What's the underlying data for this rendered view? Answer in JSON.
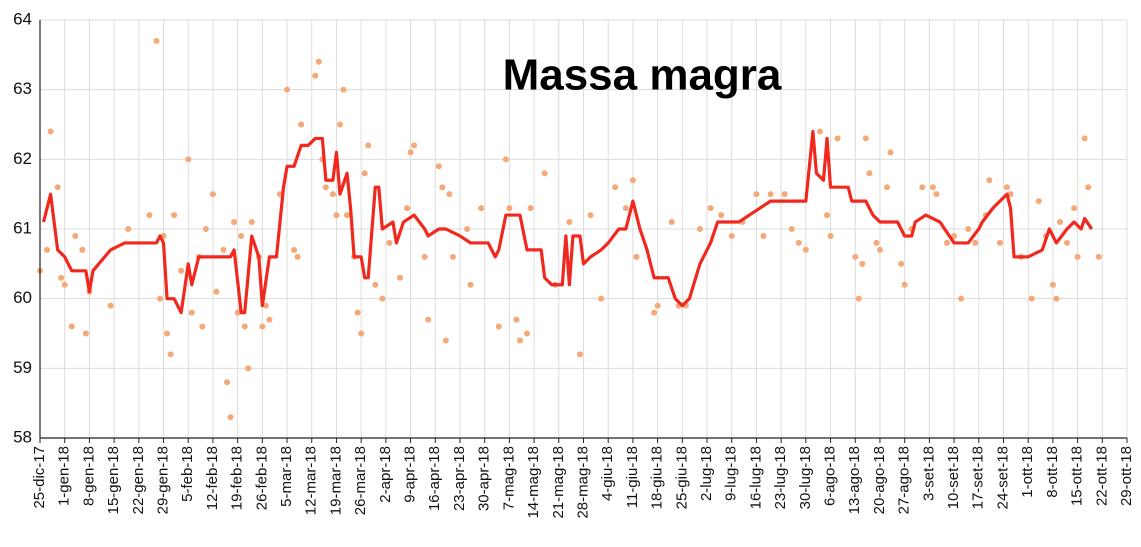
{
  "chart_data": {
    "type": "line",
    "title": "Massa magra",
    "xlim": [
      "2017-12-25",
      "2018-10-29"
    ],
    "ylim": [
      58,
      64
    ],
    "yticks": [
      58,
      59,
      60,
      61,
      62,
      63,
      64
    ],
    "grid": true,
    "xticks": [
      {
        "value": "2017-12-25",
        "label": "25-dic-17"
      },
      {
        "value": "2018-01-01",
        "label": "1-gen-18"
      },
      {
        "value": "2018-01-08",
        "label": "8-gen-18"
      },
      {
        "value": "2018-01-15",
        "label": "15-gen-18"
      },
      {
        "value": "2018-01-22",
        "label": "22-gen-18"
      },
      {
        "value": "2018-01-29",
        "label": "29-gen-18"
      },
      {
        "value": "2018-02-05",
        "label": "5-feb-18"
      },
      {
        "value": "2018-02-12",
        "label": "12-feb-18"
      },
      {
        "value": "2018-02-19",
        "label": "19-feb-18"
      },
      {
        "value": "2018-02-26",
        "label": "26-feb-18"
      },
      {
        "value": "2018-03-05",
        "label": "5-mar-18"
      },
      {
        "value": "2018-03-12",
        "label": "12-mar-18"
      },
      {
        "value": "2018-03-19",
        "label": "19-mar-18"
      },
      {
        "value": "2018-03-26",
        "label": "26-mar-18"
      },
      {
        "value": "2018-04-02",
        "label": "2-apr-18"
      },
      {
        "value": "2018-04-09",
        "label": "9-apr-18"
      },
      {
        "value": "2018-04-16",
        "label": "16-apr-18"
      },
      {
        "value": "2018-04-23",
        "label": "23-apr-18"
      },
      {
        "value": "2018-04-30",
        "label": "30-apr-18"
      },
      {
        "value": "2018-05-07",
        "label": "7-mag-18"
      },
      {
        "value": "2018-05-14",
        "label": "14-mag-18"
      },
      {
        "value": "2018-05-21",
        "label": "21-mag-18"
      },
      {
        "value": "2018-05-28",
        "label": "28-mag-18"
      },
      {
        "value": "2018-06-04",
        "label": "4-giu-18"
      },
      {
        "value": "2018-06-11",
        "label": "11-giu-18"
      },
      {
        "value": "2018-06-18",
        "label": "18-giu-18"
      },
      {
        "value": "2018-06-25",
        "label": "25-giu-18"
      },
      {
        "value": "2018-07-02",
        "label": "2-lug-18"
      },
      {
        "value": "2018-07-09",
        "label": "9-lug-18"
      },
      {
        "value": "2018-07-16",
        "label": "16-lug-18"
      },
      {
        "value": "2018-07-23",
        "label": "23-lug-18"
      },
      {
        "value": "2018-07-30",
        "label": "30-lug-18"
      },
      {
        "value": "2018-08-06",
        "label": "6-ago-18"
      },
      {
        "value": "2018-08-13",
        "label": "13-ago-18"
      },
      {
        "value": "2018-08-20",
        "label": "20-ago-18"
      },
      {
        "value": "2018-08-27",
        "label": "27-ago-18"
      },
      {
        "value": "2018-09-03",
        "label": "3-set-18"
      },
      {
        "value": "2018-09-10",
        "label": "10-set-18"
      },
      {
        "value": "2018-09-17",
        "label": "17-set-18"
      },
      {
        "value": "2018-09-24",
        "label": "24-set-18"
      },
      {
        "value": "2018-10-01",
        "label": "1-ott-18"
      },
      {
        "value": "2018-10-08",
        "label": "8-ott-18"
      },
      {
        "value": "2018-10-15",
        "label": "15-ott-18"
      },
      {
        "value": "2018-10-22",
        "label": "22-ott-18"
      },
      {
        "value": "2018-10-29",
        "label": "29-ott-18"
      }
    ],
    "series": [
      {
        "kind": "scatter",
        "color": "#f5a878",
        "x": [
          "2017-12-25",
          "2017-12-27",
          "2017-12-28",
          "2017-12-30",
          "2017-12-31",
          "2018-01-01",
          "2018-01-03",
          "2018-01-04",
          "2018-01-06",
          "2018-01-07",
          "2018-01-08",
          "2018-01-14",
          "2018-01-19",
          "2018-01-25",
          "2018-01-27",
          "2018-01-28",
          "2018-01-29",
          "2018-01-30",
          "2018-01-31",
          "2018-02-01",
          "2018-02-03",
          "2018-02-05",
          "2018-02-06",
          "2018-02-08",
          "2018-02-09",
          "2018-02-10",
          "2018-02-12",
          "2018-02-13",
          "2018-02-15",
          "2018-02-16",
          "2018-02-17",
          "2018-02-18",
          "2018-02-19",
          "2018-02-20",
          "2018-02-21",
          "2018-02-22",
          "2018-02-23",
          "2018-02-25",
          "2018-02-26",
          "2018-02-27",
          "2018-02-28",
          "2018-03-03",
          "2018-03-05",
          "2018-03-07",
          "2018-03-08",
          "2018-03-09",
          "2018-03-13",
          "2018-03-14",
          "2018-03-15",
          "2018-03-16",
          "2018-03-18",
          "2018-03-19",
          "2018-03-20",
          "2018-03-21",
          "2018-03-22",
          "2018-03-24",
          "2018-03-25",
          "2018-03-26",
          "2018-03-27",
          "2018-03-28",
          "2018-03-30",
          "2018-04-01",
          "2018-04-03",
          "2018-04-06",
          "2018-04-08",
          "2018-04-09",
          "2018-04-10",
          "2018-04-13",
          "2018-04-14",
          "2018-04-17",
          "2018-04-18",
          "2018-04-19",
          "2018-04-20",
          "2018-04-21",
          "2018-04-25",
          "2018-04-26",
          "2018-04-29",
          "2018-05-04",
          "2018-05-06",
          "2018-05-07",
          "2018-05-09",
          "2018-05-10",
          "2018-05-12",
          "2018-05-13",
          "2018-05-17",
          "2018-05-20",
          "2018-05-24",
          "2018-05-27",
          "2018-05-30",
          "2018-06-02",
          "2018-06-06",
          "2018-06-09",
          "2018-06-11",
          "2018-06-12",
          "2018-06-17",
          "2018-06-18",
          "2018-06-22",
          "2018-06-24",
          "2018-06-26",
          "2018-06-30",
          "2018-07-03",
          "2018-07-06",
          "2018-07-09",
          "2018-07-12",
          "2018-07-16",
          "2018-07-18",
          "2018-07-20",
          "2018-07-24",
          "2018-07-26",
          "2018-07-28",
          "2018-07-30",
          "2018-08-03",
          "2018-08-05",
          "2018-08-06",
          "2018-08-08",
          "2018-08-13",
          "2018-08-14",
          "2018-08-15",
          "2018-08-16",
          "2018-08-17",
          "2018-08-19",
          "2018-08-20",
          "2018-08-22",
          "2018-08-23",
          "2018-08-26",
          "2018-08-27",
          "2018-08-29",
          "2018-09-01",
          "2018-09-04",
          "2018-09-05",
          "2018-09-08",
          "2018-09-10",
          "2018-09-12",
          "2018-09-14",
          "2018-09-16",
          "2018-09-19",
          "2018-09-20",
          "2018-09-23",
          "2018-09-25",
          "2018-09-26",
          "2018-09-29",
          "2018-10-02",
          "2018-10-04",
          "2018-10-06",
          "2018-10-08",
          "2018-10-09",
          "2018-10-10",
          "2018-10-12",
          "2018-10-14",
          "2018-10-15",
          "2018-10-17",
          "2018-10-18",
          "2018-10-21"
        ],
        "values": [
          60.4,
          60.7,
          62.4,
          61.6,
          60.3,
          60.2,
          59.6,
          60.9,
          60.7,
          59.5,
          60.1,
          59.9,
          61.0,
          61.2,
          63.7,
          60.0,
          60.9,
          59.5,
          59.2,
          61.2,
          60.4,
          62.0,
          59.8,
          60.6,
          59.6,
          61.0,
          61.5,
          60.1,
          60.7,
          58.8,
          58.3,
          61.1,
          59.8,
          60.9,
          59.6,
          59.0,
          61.1,
          60.6,
          59.6,
          59.9,
          59.7,
          61.5,
          63.0,
          60.7,
          60.6,
          62.5,
          63.2,
          63.4,
          62.0,
          61.6,
          61.5,
          61.2,
          62.5,
          63.0,
          61.2,
          60.6,
          59.8,
          59.5,
          61.8,
          62.2,
          60.2,
          60.0,
          60.8,
          60.3,
          61.3,
          62.1,
          62.2,
          60.6,
          59.7,
          61.9,
          61.6,
          59.4,
          61.5,
          60.6,
          61.0,
          60.2,
          61.3,
          59.6,
          62.0,
          61.3,
          59.7,
          59.4,
          59.5,
          61.3,
          61.8,
          60.2,
          61.1,
          59.2,
          61.2,
          60.0,
          61.6,
          61.3,
          61.7,
          60.6,
          59.8,
          59.9,
          61.1,
          59.9,
          59.9,
          61.0,
          61.3,
          61.2,
          60.9,
          61.1,
          61.5,
          60.9,
          61.5,
          61.5,
          61.0,
          60.8,
          60.7,
          62.4,
          61.2,
          60.9,
          62.3,
          60.6,
          60.0,
          60.5,
          62.3,
          61.8,
          60.8,
          60.7,
          61.6,
          62.1,
          60.5,
          60.2,
          61.0,
          61.6,
          61.6,
          61.5,
          60.8,
          60.9,
          60.0,
          61.0,
          60.8,
          61.2,
          61.7,
          60.8,
          61.6,
          61.5,
          60.6,
          60.0,
          61.4,
          60.9,
          60.2,
          60.0,
          61.1,
          60.8,
          61.3,
          60.6,
          62.3,
          61.6,
          60.6
        ]
      },
      {
        "kind": "line",
        "color": "#f0281e",
        "x": [
          "2017-12-26",
          "2017-12-28",
          "2017-12-30",
          "2018-01-01",
          "2018-01-03",
          "2018-01-07",
          "2018-01-08",
          "2018-01-09",
          "2018-01-14",
          "2018-01-18",
          "2018-01-27",
          "2018-01-28",
          "2018-01-29",
          "2018-01-30",
          "2018-02-01",
          "2018-02-03",
          "2018-02-05",
          "2018-02-06",
          "2018-02-08",
          "2018-02-17",
          "2018-02-18",
          "2018-02-20",
          "2018-02-21",
          "2018-02-23",
          "2018-02-25",
          "2018-02-26",
          "2018-02-28",
          "2018-03-02",
          "2018-03-04",
          "2018-03-05",
          "2018-03-07",
          "2018-03-09",
          "2018-03-11",
          "2018-03-13",
          "2018-03-15",
          "2018-03-16",
          "2018-03-18",
          "2018-03-19",
          "2018-03-20",
          "2018-03-22",
          "2018-03-23",
          "2018-03-24",
          "2018-03-26",
          "2018-03-27",
          "2018-03-28",
          "2018-03-30",
          "2018-03-31",
          "2018-04-01",
          "2018-04-04",
          "2018-04-05",
          "2018-04-07",
          "2018-04-10",
          "2018-04-13",
          "2018-04-14",
          "2018-04-17",
          "2018-04-19",
          "2018-04-23",
          "2018-04-26",
          "2018-05-01",
          "2018-05-03",
          "2018-05-04",
          "2018-05-06",
          "2018-05-10",
          "2018-05-12",
          "2018-05-16",
          "2018-05-17",
          "2018-05-19",
          "2018-05-22",
          "2018-05-23",
          "2018-05-24",
          "2018-05-25",
          "2018-05-27",
          "2018-05-28",
          "2018-05-30",
          "2018-06-02",
          "2018-06-04",
          "2018-06-07",
          "2018-06-09",
          "2018-06-11",
          "2018-06-13",
          "2018-06-15",
          "2018-06-17",
          "2018-06-21",
          "2018-06-23",
          "2018-06-25",
          "2018-06-27",
          "2018-06-30",
          "2018-07-03",
          "2018-07-05",
          "2018-07-11",
          "2018-07-14",
          "2018-07-17",
          "2018-07-20",
          "2018-07-28",
          "2018-07-30",
          "2018-08-01",
          "2018-08-02",
          "2018-08-04",
          "2018-08-05",
          "2018-08-06",
          "2018-08-11",
          "2018-08-12",
          "2018-08-16",
          "2018-08-18",
          "2018-08-20",
          "2018-08-25",
          "2018-08-27",
          "2018-08-29",
          "2018-08-30",
          "2018-09-02",
          "2018-09-06",
          "2018-09-10",
          "2018-09-14",
          "2018-09-17",
          "2018-09-18",
          "2018-09-21",
          "2018-09-23",
          "2018-09-25",
          "2018-09-26",
          "2018-09-27",
          "2018-10-01",
          "2018-10-05",
          "2018-10-07",
          "2018-10-09",
          "2018-10-12",
          "2018-10-14",
          "2018-10-16",
          "2018-10-17",
          "2018-10-19"
        ],
        "values": [
          61.1,
          61.5,
          60.7,
          60.6,
          60.4,
          60.4,
          60.1,
          60.4,
          60.7,
          60.8,
          60.8,
          60.9,
          60.8,
          60.0,
          60.0,
          59.8,
          60.5,
          60.2,
          60.6,
          60.6,
          60.7,
          59.8,
          59.8,
          60.9,
          60.6,
          59.9,
          60.6,
          60.6,
          61.6,
          61.9,
          61.9,
          62.2,
          62.2,
          62.3,
          62.3,
          61.7,
          61.7,
          62.1,
          61.5,
          61.8,
          61.3,
          60.6,
          60.6,
          60.3,
          60.3,
          61.6,
          61.6,
          61.0,
          61.1,
          60.8,
          61.1,
          61.2,
          61.0,
          60.9,
          61.0,
          61.0,
          60.9,
          60.8,
          60.8,
          60.6,
          60.7,
          61.2,
          61.2,
          60.7,
          60.7,
          60.3,
          60.2,
          60.2,
          60.9,
          60.2,
          60.9,
          60.9,
          60.5,
          60.6,
          60.7,
          60.8,
          61.0,
          61.0,
          61.4,
          61.0,
          60.7,
          60.3,
          60.3,
          60.0,
          59.9,
          60.0,
          60.5,
          60.8,
          61.1,
          61.1,
          61.2,
          61.3,
          61.4,
          61.4,
          61.4,
          62.4,
          61.8,
          61.7,
          62.3,
          61.6,
          61.6,
          61.4,
          61.4,
          61.2,
          61.1,
          61.1,
          60.9,
          60.9,
          61.1,
          61.2,
          61.1,
          60.8,
          60.8,
          61.0,
          61.1,
          61.3,
          61.4,
          61.5,
          61.3,
          60.6,
          60.6,
          60.7,
          61.0,
          60.8,
          61.0,
          61.1,
          61.0,
          61.15,
          61.0
        ]
      }
    ]
  }
}
